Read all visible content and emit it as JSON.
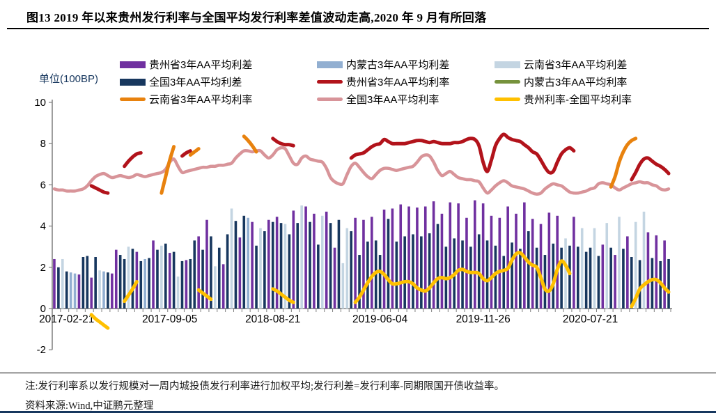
{
  "title": "图13  2019 年以来贵州发行利率与全国平均发行利率差值波动走高,2020 年 9 月有所回落",
  "y_axis": {
    "unit_label": "单位(100BP)",
    "ticks": [
      10,
      8,
      6,
      4,
      2,
      0,
      -2
    ],
    "min": -2,
    "max": 10
  },
  "x_axis": {
    "tick_labels": [
      "2017-02-21",
      "2017-09-05",
      "2018-08-21",
      "2019-06-04",
      "2019-11-26",
      "2020-07-21"
    ],
    "tick_indices": [
      3,
      28,
      53,
      79,
      104,
      130
    ]
  },
  "legend": [
    {
      "label": "贵州省3年AA平均利差",
      "swatch": "bar",
      "color": "#7030A0"
    },
    {
      "label": "内蒙古3年AA平均利差",
      "swatch": "bar",
      "color": "#92AFD1"
    },
    {
      "label": "云南省3年AA平均利差",
      "swatch": "bar",
      "color": "#C4D5E2"
    },
    {
      "label": "全国3年AA平均利差",
      "swatch": "bar",
      "color": "#17375E"
    },
    {
      "label": "贵州省3年AA平均利率",
      "swatch": "line",
      "color": "#B2131B"
    },
    {
      "label": "内蒙古3年AA平均利率",
      "swatch": "line",
      "color": "#76923C"
    },
    {
      "label": "云南省3年AA平均利率",
      "swatch": "line",
      "color": "#E8820E"
    },
    {
      "label": "全国3年AA平均利率",
      "swatch": "line",
      "color": "#D89499"
    },
    {
      "label": "贵州利率-全国平均利率",
      "swatch": "line",
      "color": "#FFC000"
    }
  ],
  "notes": {
    "note": "注:发行利率系以发行规模对一周内城投债发行利率进行加权平均;发行利差=发行利率-同期限国开债收益率。",
    "source": "资料来源:Wind,中证鹏元整理"
  },
  "chart_data": {
    "type": "bar",
    "n_points": 150,
    "unit": "100BP",
    "axis_color": "#7F7F7F",
    "bar_width": 3.6,
    "bar_colors": {
      "g": "#7030A0",
      "q": "#17375E",
      "n": "#92AFD1",
      "y": "#C4D5E2"
    },
    "bar_series_names": {
      "g": "贵州省3年AA平均利差",
      "q": "全国3年AA平均利差",
      "n": "内蒙古3年AA平均利差",
      "y": "云南省3年AA平均利差"
    },
    "bars": [
      [
        "g",
        2.4
      ],
      [
        "q",
        2.0
      ],
      [
        "y",
        2.4
      ],
      [
        "q",
        1.8
      ],
      [
        "n",
        1.75
      ],
      [
        "n",
        1.7
      ],
      [
        "g",
        1.65
      ],
      [
        "q",
        2.5
      ],
      [
        "q",
        2.55
      ],
      [
        "g",
        1.5
      ],
      [
        "q",
        2.5
      ],
      [
        "y",
        1.85
      ],
      [
        "n",
        1.8
      ],
      [
        "q",
        1.75
      ],
      [
        "g",
        1.7
      ],
      [
        "g",
        2.85
      ],
      [
        "q",
        2.6
      ],
      [
        "q",
        2.4
      ],
      [
        "y",
        3.0
      ],
      [
        "q",
        2.9
      ],
      [
        "g",
        2.75
      ],
      [
        "q",
        2.3
      ],
      [
        "n",
        2.4
      ],
      [
        "q",
        2.45
      ],
      [
        "g",
        3.3
      ],
      [
        "q",
        2.85
      ],
      [
        "y",
        3.05
      ],
      [
        "q",
        3.15
      ],
      [
        "g",
        2.7
      ],
      [
        "q",
        2.75
      ],
      [
        "y",
        1.55
      ],
      [
        "q",
        2.3
      ],
      [
        "g",
        2.35
      ],
      [
        "q",
        2.4
      ],
      [
        "q",
        3.3
      ],
      [
        "g",
        3.5
      ],
      [
        "q",
        2.85
      ],
      [
        "g",
        4.3
      ],
      [
        "q",
        3.5
      ],
      [
        "y",
        2.05
      ],
      [
        "q",
        2.95
      ],
      [
        "g",
        2.15
      ],
      [
        "q",
        3.6
      ],
      [
        "y",
        4.85
      ],
      [
        "q",
        4.25
      ],
      [
        "g",
        3.45
      ],
      [
        "q",
        4.5
      ],
      [
        "n",
        4.4
      ],
      [
        "g",
        4.2
      ],
      [
        "q",
        3.05
      ],
      [
        "y",
        3.9
      ],
      [
        "q",
        3.75
      ],
      [
        "g",
        4.3
      ],
      [
        "q",
        4.2
      ],
      [
        "g",
        4.45
      ],
      [
        "q",
        4.15
      ],
      [
        "y",
        4.1
      ],
      [
        "q",
        3.6
      ],
      [
        "g",
        4.75
      ],
      [
        "q",
        4.15
      ],
      [
        "y",
        5.0
      ],
      [
        "g",
        4.95
      ],
      [
        "q",
        4.2
      ],
      [
        "g",
        4.6
      ],
      [
        "q",
        3.1
      ],
      [
        "y",
        4.5
      ],
      [
        "g",
        4.7
      ],
      [
        "q",
        4.15
      ],
      [
        "g",
        2.95
      ],
      [
        "q",
        4.3
      ],
      [
        "y",
        2.2
      ],
      [
        "y",
        3.9
      ],
      [
        "q",
        3.75
      ],
      [
        "g",
        4.4
      ],
      [
        "q",
        2.6
      ],
      [
        "g",
        4.3
      ],
      [
        "q",
        3.25
      ],
      [
        "g",
        4.45
      ],
      [
        "q",
        3.3
      ],
      [
        "q",
        2.6
      ],
      [
        "g",
        4.8
      ],
      [
        "q",
        4.35
      ],
      [
        "g",
        4.85
      ],
      [
        "q",
        3.25
      ],
      [
        "g",
        5.05
      ],
      [
        "q",
        3.5
      ],
      [
        "g",
        4.95
      ],
      [
        "q",
        3.6
      ],
      [
        "g",
        4.9
      ],
      [
        "q",
        3.5
      ],
      [
        "g",
        4.95
      ],
      [
        "q",
        3.65
      ],
      [
        "g",
        5.2
      ],
      [
        "q",
        4.1
      ],
      [
        "g",
        4.6
      ],
      [
        "q",
        3.0
      ],
      [
        "g",
        5.15
      ],
      [
        "q",
        3.4
      ],
      [
        "g",
        5.1
      ],
      [
        "q",
        3.3
      ],
      [
        "g",
        4.4
      ],
      [
        "q",
        3.0
      ],
      [
        "g",
        5.25
      ],
      [
        "q",
        3.6
      ],
      [
        "g",
        5.1
      ],
      [
        "q",
        3.3
      ],
      [
        "g",
        4.5
      ],
      [
        "q",
        3.05
      ],
      [
        "g",
        4.4
      ],
      [
        "q",
        2.55
      ],
      [
        "g",
        4.95
      ],
      [
        "q",
        3.2
      ],
      [
        "g",
        4.6
      ],
      [
        "q",
        2.9
      ],
      [
        "g",
        5.15
      ],
      [
        "q",
        3.75
      ],
      [
        "g",
        4.35
      ],
      [
        "q",
        2.95
      ],
      [
        "g",
        4.1
      ],
      [
        "q",
        2.6
      ],
      [
        "g",
        4.65
      ],
      [
        "q",
        3.15
      ],
      [
        "g",
        4.5
      ],
      [
        "q",
        2.95
      ],
      [
        "y",
        3.4
      ],
      [
        "q",
        3.05
      ],
      [
        "g",
        4.45
      ],
      [
        "q",
        3.0
      ],
      [
        "y",
        3.9
      ],
      [
        "q",
        2.75
      ],
      [
        "q",
        2.95
      ],
      [
        "y",
        3.9
      ],
      [
        "q",
        2.55
      ],
      [
        "g",
        3.1
      ],
      [
        "y",
        4.15
      ],
      [
        "q",
        2.95
      ],
      [
        "g",
        2.6
      ],
      [
        "y",
        4.45
      ],
      [
        "q",
        2.9
      ],
      [
        "g",
        3.5
      ],
      [
        "q",
        2.5
      ],
      [
        "y",
        4.2
      ],
      [
        "q",
        2.35
      ],
      [
        "y",
        4.7
      ],
      [
        "g",
        3.7
      ],
      [
        "q",
        2.45
      ],
      [
        "g",
        3.55
      ],
      [
        "q",
        2.3
      ],
      [
        "g",
        3.3
      ],
      [
        "q",
        2.4
      ]
    ],
    "series": [
      {
        "name": "全国3年AA平均利率",
        "color": "#D89499",
        "width": 4.5,
        "values": [
          5.8,
          5.75,
          5.75,
          5.7,
          5.7,
          5.7,
          5.75,
          5.8,
          5.95,
          6.2,
          6.4,
          6.5,
          6.55,
          6.45,
          6.35,
          6.4,
          6.45,
          6.4,
          6.35,
          6.4,
          6.5,
          6.45,
          6.4,
          6.45,
          6.5,
          6.55,
          6.6,
          6.75,
          7.1,
          7.25,
          6.9,
          6.6,
          6.65,
          6.7,
          6.75,
          6.8,
          6.85,
          6.85,
          6.9,
          6.9,
          6.95,
          6.95,
          7.0,
          7.05,
          7.3,
          7.5,
          7.65,
          7.65,
          7.6,
          7.65,
          7.65,
          7.45,
          7.3,
          7.45,
          7.7,
          7.8,
          7.75,
          7.4,
          7.05,
          7.0,
          7.3,
          7.4,
          7.25,
          7.2,
          7.15,
          7.1,
          6.8,
          6.35,
          6.15,
          6.05,
          6.05,
          6.5,
          6.9,
          7.05,
          6.85,
          6.6,
          6.4,
          6.3,
          6.5,
          6.7,
          6.8,
          6.8,
          6.75,
          6.7,
          6.75,
          6.8,
          6.85,
          6.9,
          7.1,
          7.35,
          7.45,
          7.4,
          7.1,
          6.7,
          6.45,
          6.55,
          6.65,
          6.5,
          6.35,
          6.3,
          6.25,
          6.25,
          6.2,
          6.15,
          5.85,
          5.6,
          5.75,
          5.95,
          6.1,
          6.2,
          6.1,
          5.95,
          5.9,
          5.85,
          5.8,
          5.7,
          5.6,
          5.55,
          5.6,
          5.8,
          5.95,
          6.05,
          6.0,
          5.95,
          5.8,
          5.65,
          5.6,
          5.6,
          5.65,
          5.7,
          5.8,
          5.85,
          6.05,
          6.1,
          6.05,
          6.0,
          5.85,
          5.75,
          5.85,
          5.95,
          6.05,
          6.1,
          6.15,
          6.1,
          6.1,
          6.0,
          5.95,
          5.8,
          5.75,
          5.8
        ]
      },
      {
        "name": "内蒙古3年AA平均利率",
        "color": "#76923C",
        "width": 4,
        "values": null
      },
      {
        "name": "贵州省3年AA平均利率",
        "color": "#B2131B",
        "width": 5,
        "values": [
          null,
          null,
          null,
          null,
          null,
          null,
          null,
          null,
          null,
          5.95,
          5.85,
          5.75,
          5.65,
          5.6,
          null,
          null,
          null,
          6.9,
          7.15,
          7.35,
          7.5,
          7.55,
          null,
          null,
          null,
          null,
          null,
          null,
          null,
          null,
          null,
          7.4,
          7.55,
          7.65,
          null,
          null,
          null,
          null,
          null,
          null,
          null,
          null,
          null,
          null,
          null,
          null,
          null,
          null,
          null,
          null,
          null,
          null,
          null,
          8.25,
          8.1,
          8.0,
          7.95,
          7.95,
          7.9,
          null,
          null,
          null,
          null,
          null,
          null,
          null,
          null,
          null,
          null,
          null,
          null,
          null,
          7.3,
          7.45,
          7.5,
          7.55,
          7.7,
          7.85,
          7.95,
          8.0,
          8.2,
          8.1,
          8.0,
          8.0,
          8.0,
          8.0,
          8.05,
          8.1,
          8.15,
          8.15,
          8.1,
          8.05,
          8.1,
          8.05,
          8.0,
          8.0,
          8.0,
          8.05,
          8.05,
          8.1,
          8.2,
          8.25,
          8.2,
          7.9,
          7.1,
          6.65,
          7.2,
          7.9,
          8.25,
          8.45,
          8.3,
          8.2,
          8.15,
          8.1,
          7.95,
          7.8,
          7.6,
          7.5,
          7.2,
          6.85,
          6.6,
          6.65,
          7.1,
          7.5,
          7.7,
          7.8,
          7.65,
          null,
          null,
          null,
          null,
          null,
          null,
          null,
          null,
          null,
          null,
          null,
          null,
          null,
          6.25,
          6.6,
          7.0,
          7.25,
          7.3,
          7.15,
          7.0,
          6.9,
          6.75,
          6.55
        ]
      },
      {
        "name": "云南省3年AA平均利率",
        "color": "#E8820E",
        "width": 5,
        "values": [
          null,
          null,
          null,
          null,
          null,
          null,
          null,
          null,
          null,
          null,
          null,
          null,
          null,
          null,
          null,
          null,
          null,
          null,
          null,
          null,
          null,
          null,
          null,
          null,
          null,
          null,
          5.6,
          6.4,
          7.2,
          7.85,
          null,
          null,
          null,
          7.45,
          7.6,
          7.75,
          null,
          null,
          null,
          null,
          null,
          null,
          null,
          null,
          null,
          null,
          8.35,
          8.15,
          7.9,
          7.6,
          null,
          null,
          null,
          null,
          null,
          null,
          null,
          null,
          null,
          null,
          null,
          null,
          null,
          null,
          null,
          null,
          null,
          null,
          null,
          null,
          null,
          null,
          null,
          null,
          null,
          null,
          null,
          null,
          null,
          null,
          null,
          null,
          null,
          null,
          null,
          null,
          null,
          null,
          null,
          null,
          null,
          null,
          null,
          null,
          null,
          null,
          null,
          null,
          null,
          null,
          null,
          null,
          null,
          null,
          null,
          null,
          null,
          null,
          null,
          null,
          null,
          null,
          null,
          null,
          null,
          null,
          null,
          null,
          null,
          null,
          null,
          null,
          null,
          null,
          null,
          null,
          null,
          null,
          null,
          null,
          null,
          null,
          null,
          null,
          null,
          5.9,
          6.4,
          7.1,
          7.6,
          7.95,
          8.15,
          8.25,
          null,
          null,
          null,
          null,
          null,
          null,
          null,
          null
        ]
      },
      {
        "name": "贵州利率-全国平均利率",
        "color": "#FFC000",
        "width": 5,
        "values": [
          null,
          null,
          null,
          null,
          null,
          null,
          null,
          null,
          null,
          -0.3,
          -0.5,
          -0.65,
          -0.8,
          -0.95,
          null,
          null,
          null,
          0.35,
          0.65,
          0.95,
          1.3,
          null,
          null,
          null,
          null,
          null,
          null,
          null,
          null,
          null,
          null,
          null,
          null,
          null,
          null,
          0.9,
          0.75,
          0.6,
          0.45,
          null,
          null,
          null,
          null,
          null,
          null,
          null,
          null,
          null,
          null,
          null,
          null,
          null,
          null,
          0.95,
          0.85,
          0.7,
          0.55,
          0.4,
          0.3,
          null,
          null,
          null,
          null,
          null,
          null,
          null,
          null,
          null,
          null,
          null,
          null,
          null,
          null,
          0.3,
          0.55,
          0.9,
          1.25,
          1.55,
          1.75,
          1.8,
          1.65,
          1.4,
          1.2,
          1.2,
          1.25,
          1.3,
          1.3,
          1.2,
          1.0,
          0.9,
          0.85,
          1.0,
          1.25,
          1.45,
          1.5,
          1.45,
          1.5,
          1.65,
          1.85,
          1.9,
          1.8,
          1.75,
          1.75,
          1.7,
          1.45,
          1.35,
          1.5,
          1.7,
          1.8,
          1.85,
          1.95,
          2.35,
          2.65,
          2.7,
          2.5,
          2.25,
          2.1,
          2.0,
          1.5,
          0.95,
          0.85,
          1.2,
          1.9,
          2.3,
          2.1,
          1.7,
          null,
          null,
          null,
          null,
          null,
          null,
          null,
          null,
          null,
          null,
          null,
          null,
          null,
          null,
          0.1,
          0.5,
          0.95,
          1.15,
          1.3,
          1.4,
          1.4,
          1.25,
          1.0,
          0.8
        ]
      }
    ]
  }
}
